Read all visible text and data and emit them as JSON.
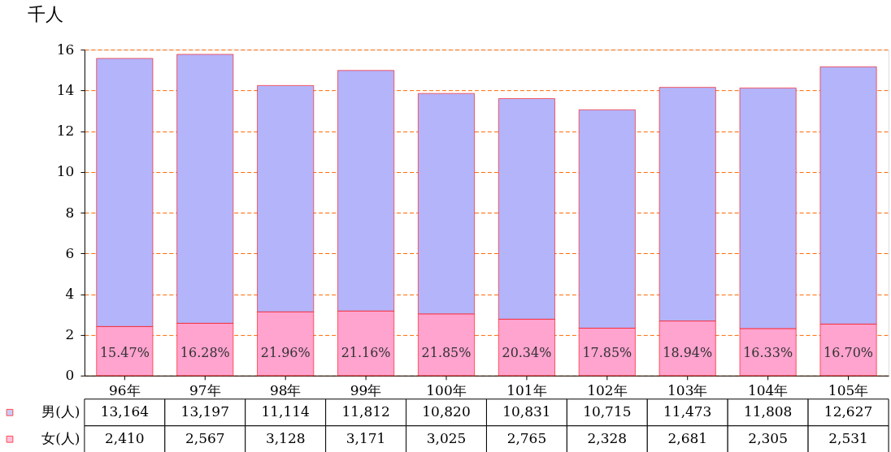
{
  "chart_data": {
    "type": "bar",
    "stacked": true,
    "ylabel": "千人",
    "categories": [
      "96年",
      "97年",
      "98年",
      "99年",
      "100年",
      "101年",
      "102年",
      "103年",
      "104年",
      "105年"
    ],
    "series": [
      {
        "name": "女(人)",
        "color": "#ffa3cf",
        "values": [
          2.41,
          2.57,
          3.13,
          3.17,
          3.03,
          2.77,
          2.33,
          2.68,
          2.31,
          2.53
        ]
      },
      {
        "name": "男(人)",
        "color": "#b4b4fa",
        "values": [
          13.16,
          13.2,
          11.11,
          11.81,
          10.82,
          10.83,
          10.72,
          11.47,
          11.81,
          12.63
        ]
      }
    ],
    "ylim": [
      0,
      16
    ],
    "yticks": [
      0,
      2,
      4,
      6,
      8,
      10,
      12,
      14,
      16
    ],
    "grid": "y",
    "legend": "bottom left",
    "annotations": [
      "15.47%",
      "16.28%",
      "21.96%",
      "21.16%",
      "21.85%",
      "20.34%",
      "17.85%",
      "18.94%",
      "16.33%",
      "16.70%",
      "13,164",
      "13,197",
      "11,114",
      "11,812",
      "10,820",
      "10,831",
      "10,715",
      "11,473",
      "11,808",
      "12,627",
      "2,410",
      "2,567",
      "3,128",
      "3,171",
      "3,025",
      "2,765",
      "2,328",
      "2,681",
      "2,305",
      "2,531"
    ]
  }
}
